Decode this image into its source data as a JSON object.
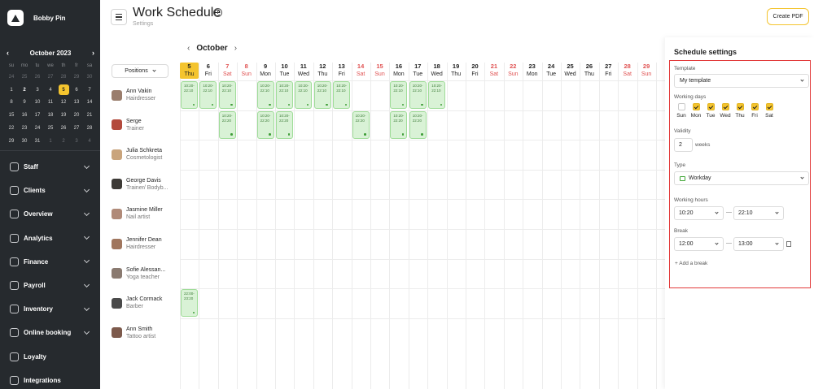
{
  "app": {
    "user_name": "Bobby Pin"
  },
  "mini_calendar": {
    "month_label": "October 2023",
    "weekdays": [
      "su",
      "mo",
      "tu",
      "we",
      "th",
      "fr",
      "sa"
    ],
    "cells": [
      "24",
      "25",
      "26",
      "27",
      "28",
      "29",
      "30",
      "1",
      "2",
      "3",
      "4",
      "5",
      "6",
      "7",
      "8",
      "9",
      "10",
      "11",
      "12",
      "13",
      "14",
      "15",
      "16",
      "17",
      "18",
      "19",
      "20",
      "21",
      "22",
      "23",
      "24",
      "25",
      "26",
      "27",
      "28",
      "29",
      "30",
      "31",
      "1",
      "2",
      "3",
      "4"
    ]
  },
  "menu": {
    "items": [
      {
        "label": "Staff",
        "chevron": true
      },
      {
        "label": "Clients",
        "chevron": true
      },
      {
        "label": "Overview",
        "chevron": true
      },
      {
        "label": "Analytics",
        "chevron": true
      },
      {
        "label": "Finance",
        "chevron": true
      },
      {
        "label": "Payroll",
        "chevron": true
      },
      {
        "label": "Inventory",
        "chevron": true
      },
      {
        "label": "Online booking",
        "chevron": true
      },
      {
        "label": "Loyalty",
        "chevron": false
      },
      {
        "label": "Integrations",
        "chevron": false
      }
    ]
  },
  "header": {
    "title": "Work Schedule",
    "info_glyph": "i",
    "subtitle": "Settings",
    "create_pdf": "Create PDF"
  },
  "calendar": {
    "month": "October",
    "positions_label": "Positions",
    "days": [
      {
        "num": "5",
        "dow": "Thu",
        "weekend": false,
        "today": true
      },
      {
        "num": "6",
        "dow": "Fri",
        "weekend": false
      },
      {
        "num": "7",
        "dow": "Sat",
        "weekend": true
      },
      {
        "num": "8",
        "dow": "Sun",
        "weekend": true
      },
      {
        "num": "9",
        "dow": "Mon",
        "weekend": false
      },
      {
        "num": "10",
        "dow": "Tue",
        "weekend": false
      },
      {
        "num": "11",
        "dow": "Wed",
        "weekend": false
      },
      {
        "num": "12",
        "dow": "Thu",
        "weekend": false
      },
      {
        "num": "13",
        "dow": "Fri",
        "weekend": false
      },
      {
        "num": "14",
        "dow": "Sat",
        "weekend": true
      },
      {
        "num": "15",
        "dow": "Sun",
        "weekend": true
      },
      {
        "num": "16",
        "dow": "Mon",
        "weekend": false
      },
      {
        "num": "17",
        "dow": "Tue",
        "weekend": false
      },
      {
        "num": "18",
        "dow": "Wed",
        "weekend": false
      },
      {
        "num": "19",
        "dow": "Thu",
        "weekend": false
      },
      {
        "num": "20",
        "dow": "Fri",
        "weekend": false
      },
      {
        "num": "21",
        "dow": "Sat",
        "weekend": true
      },
      {
        "num": "22",
        "dow": "Sun",
        "weekend": true
      },
      {
        "num": "23",
        "dow": "Mon",
        "weekend": false
      },
      {
        "num": "24",
        "dow": "Tue",
        "weekend": false
      },
      {
        "num": "25",
        "dow": "Wed",
        "weekend": false
      },
      {
        "num": "26",
        "dow": "Thu",
        "weekend": false
      },
      {
        "num": "27",
        "dow": "Fri",
        "weekend": false
      },
      {
        "num": "28",
        "dow": "Sat",
        "weekend": true
      },
      {
        "num": "29",
        "dow": "Sun",
        "weekend": true
      }
    ],
    "staff": [
      {
        "name": "Ann Vakin",
        "role": "Hairdresser",
        "avatar_color": "#9a7d6c",
        "shift_text": "10:20-\n22:10",
        "shift_days": [
          0,
          1,
          2,
          4,
          5,
          6,
          7,
          8,
          11,
          12,
          13
        ]
      },
      {
        "name": "Serge",
        "role": "Trainer",
        "avatar_color": "#b34a3c",
        "shift_text": "10:20-\n22:20",
        "shift_days": [
          2,
          4,
          5,
          9,
          11,
          12
        ]
      },
      {
        "name": "Julia Schkreta",
        "role": "Cosmetologist",
        "avatar_color": "#c9a47c",
        "shift_days": []
      },
      {
        "name": "George Davis",
        "role": "Trainer/ Bodyb...",
        "avatar_color": "#3d3a36",
        "shift_days": []
      },
      {
        "name": "Jasmine Miller",
        "role": "Nail artist",
        "avatar_color": "#b08a78",
        "shift_days": []
      },
      {
        "name": "Jennifer Dean",
        "role": "Hairdresser",
        "avatar_color": "#a0765e",
        "shift_days": []
      },
      {
        "name": "Sofie Alessan...",
        "role": "Yoga teacher",
        "avatar_color": "#8a7a70",
        "shift_days": []
      },
      {
        "name": "Jack Cormack",
        "role": "Barber",
        "avatar_color": "#4a4a4a",
        "shift_text": "22:00-\n23:20",
        "shift_days": [
          0
        ]
      },
      {
        "name": "Ann Smith",
        "role": "Tattoo artist",
        "avatar_color": "#7d5a4c",
        "shift_days": []
      }
    ]
  },
  "settings": {
    "title": "Schedule settings",
    "template_label": "Template",
    "template_value": "My template",
    "working_days_label": "Working days",
    "days": [
      {
        "label": "Sun",
        "checked": false
      },
      {
        "label": "Mon",
        "checked": true
      },
      {
        "label": "Tue",
        "checked": true
      },
      {
        "label": "Wed",
        "checked": true
      },
      {
        "label": "Thu",
        "checked": true
      },
      {
        "label": "Fri",
        "checked": true
      },
      {
        "label": "Sat",
        "checked": true
      }
    ],
    "validity_label": "Validity",
    "validity_value": "2",
    "validity_unit": "weeks",
    "type_label": "Type",
    "type_value": "Workday",
    "hours_label": "Working hours",
    "hours_from": "10:20",
    "hours_to": "22:10",
    "break_label": "Break",
    "break_from": "12:00",
    "break_to": "13:00",
    "dash": "—",
    "add_break": "+ Add a break"
  }
}
